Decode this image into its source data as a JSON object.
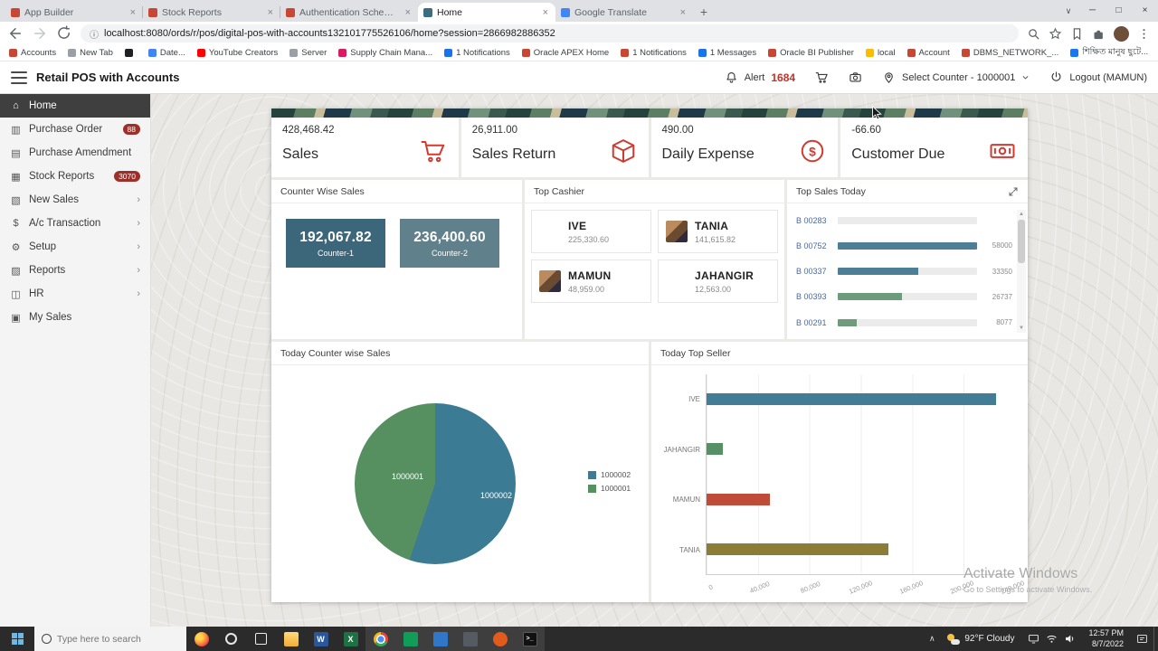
{
  "browser": {
    "tabs": [
      {
        "label": "App Builder",
        "favicon_color": "#c74634"
      },
      {
        "label": "Stock Reports",
        "favicon_color": "#c74634"
      },
      {
        "label": "Authentication Schemes",
        "favicon_color": "#c74634"
      },
      {
        "label": "Home",
        "favicon_color": "#3d6c80"
      },
      {
        "label": "Google Translate",
        "favicon_color": "#4285f4"
      }
    ],
    "url": "localhost:8080/ords/r/pos/digital-pos-with-accounts132101775526106/home?session=2866982886352",
    "bookmarks": [
      {
        "label": "Accounts",
        "color": "#c74634"
      },
      {
        "label": "New Tab",
        "color": "#9aa0a6"
      },
      {
        "label": "",
        "color": "#202124"
      },
      {
        "label": "Date...",
        "color": "#4285f4"
      },
      {
        "label": "YouTube Creators",
        "color": "#ff0000"
      },
      {
        "label": "Server",
        "color": "#9aa0a6"
      },
      {
        "label": "Supply Chain Mana...",
        "color": "#d81b60"
      },
      {
        "label": "1 Notifications",
        "color": "#1a73e8"
      },
      {
        "label": "Oracle APEX Home",
        "color": "#c74634"
      },
      {
        "label": "1 Notifications",
        "color": "#c74634"
      },
      {
        "label": "1 Messages",
        "color": "#1a73e8"
      },
      {
        "label": "Oracle BI Publisher",
        "color": "#c74634"
      },
      {
        "label": "local",
        "color": "#fbbc04"
      },
      {
        "label": "Account",
        "color": "#c74634"
      },
      {
        "label": "DBMS_NETWORK_...",
        "color": "#c74634"
      },
      {
        "label": "শিক্ষিত মানুষ ছুটে...",
        "color": "#1877f2"
      }
    ]
  },
  "app_header": {
    "title": "Retail POS with Accounts",
    "alert_label": "Alert",
    "alert_count": "1684",
    "counter_select": "Select Counter - 1000001",
    "logout_label": "Logout (MAMUN)"
  },
  "sidebar": {
    "items": [
      {
        "label": "Home"
      },
      {
        "label": "Purchase Order",
        "badge": "88"
      },
      {
        "label": "Purchase Amendment"
      },
      {
        "label": "Stock Reports",
        "badge": "3070"
      },
      {
        "label": "New Sales"
      },
      {
        "label": "A/c Transaction"
      },
      {
        "label": "Setup"
      },
      {
        "label": "Reports"
      },
      {
        "label": "HR"
      },
      {
        "label": "My Sales"
      }
    ]
  },
  "dashboard": {
    "stats": [
      {
        "value": "428,468.42",
        "label": "Sales"
      },
      {
        "value": "26,911.00",
        "label": "Sales Return"
      },
      {
        "value": "490.00",
        "label": "Daily Expense"
      },
      {
        "value": "-66.60",
        "label": "Customer Due"
      }
    ],
    "counter_wise": {
      "title": "Counter Wise Sales",
      "tiles": [
        {
          "value": "192,067.82",
          "label": "Counter-1",
          "color": "#3c6679"
        },
        {
          "value": "236,400.60",
          "label": "Counter-2",
          "color": "#60808b"
        }
      ]
    },
    "top_cashier": {
      "title": "Top Cashier",
      "cashiers": [
        {
          "name": "IVE",
          "value": "225,330.60"
        },
        {
          "name": "TANIA",
          "value": "141,615.82"
        },
        {
          "name": "MAMUN",
          "value": "48,959.00"
        },
        {
          "name": "JAHANGIR",
          "value": "12,563.00"
        }
      ]
    },
    "top_sales": {
      "title": "Top Sales Today"
    },
    "pie_panel": {
      "title": "Today Counter wise Sales"
    },
    "seller_panel": {
      "title": "Today Top Seller"
    }
  },
  "watermark": {
    "line1": "Activate Windows",
    "line2": "Go to Settings to activate Windows."
  },
  "taskbar": {
    "search_placeholder": "Type here to search",
    "weather": "92°F Cloudy",
    "time": "12:57 PM",
    "date": "8/7/2022"
  },
  "chart_data": [
    {
      "type": "bar",
      "name": "top_sales_today",
      "title": "Top Sales Today",
      "orientation": "horizontal",
      "categories": [
        "B 00283",
        "B 00752",
        "B 00337",
        "B 00393",
        "B 00291"
      ],
      "values": [
        0,
        58000,
        33350,
        26737,
        8077
      ],
      "value_labels": [
        "",
        "58000",
        "33350",
        "26737",
        "8077"
      ],
      "max": 58000,
      "colors": [
        "#d9d9d9",
        "#4c7f96",
        "#4c7f96",
        "#6f9b7d",
        "#6f9b7d"
      ],
      "track_color": "#ebebeb"
    },
    {
      "type": "pie",
      "name": "today_counter_wise",
      "title": "Today Counter wise Sales",
      "labels": [
        "1000002",
        "1000001"
      ],
      "values": [
        236400.6,
        192067.82
      ],
      "colors": [
        "#3b7b93",
        "#569061"
      ],
      "legend_position": "right"
    },
    {
      "type": "bar",
      "name": "today_top_seller",
      "title": "Today Top Seller",
      "orientation": "horizontal",
      "categories": [
        "IVE",
        "JAHANGIR",
        "MAMUN",
        "TANIA"
      ],
      "values": [
        225330.6,
        12563.0,
        48959.0,
        141615.82
      ],
      "colors": [
        "#417e95",
        "#579066",
        "#bf4b38",
        "#8d7c35"
      ],
      "xmax": 240000,
      "xticks": [
        "0",
        "40,000",
        "80,000",
        "120,000",
        "160,000",
        "200,000",
        "240,000"
      ],
      "grid": true
    }
  ]
}
